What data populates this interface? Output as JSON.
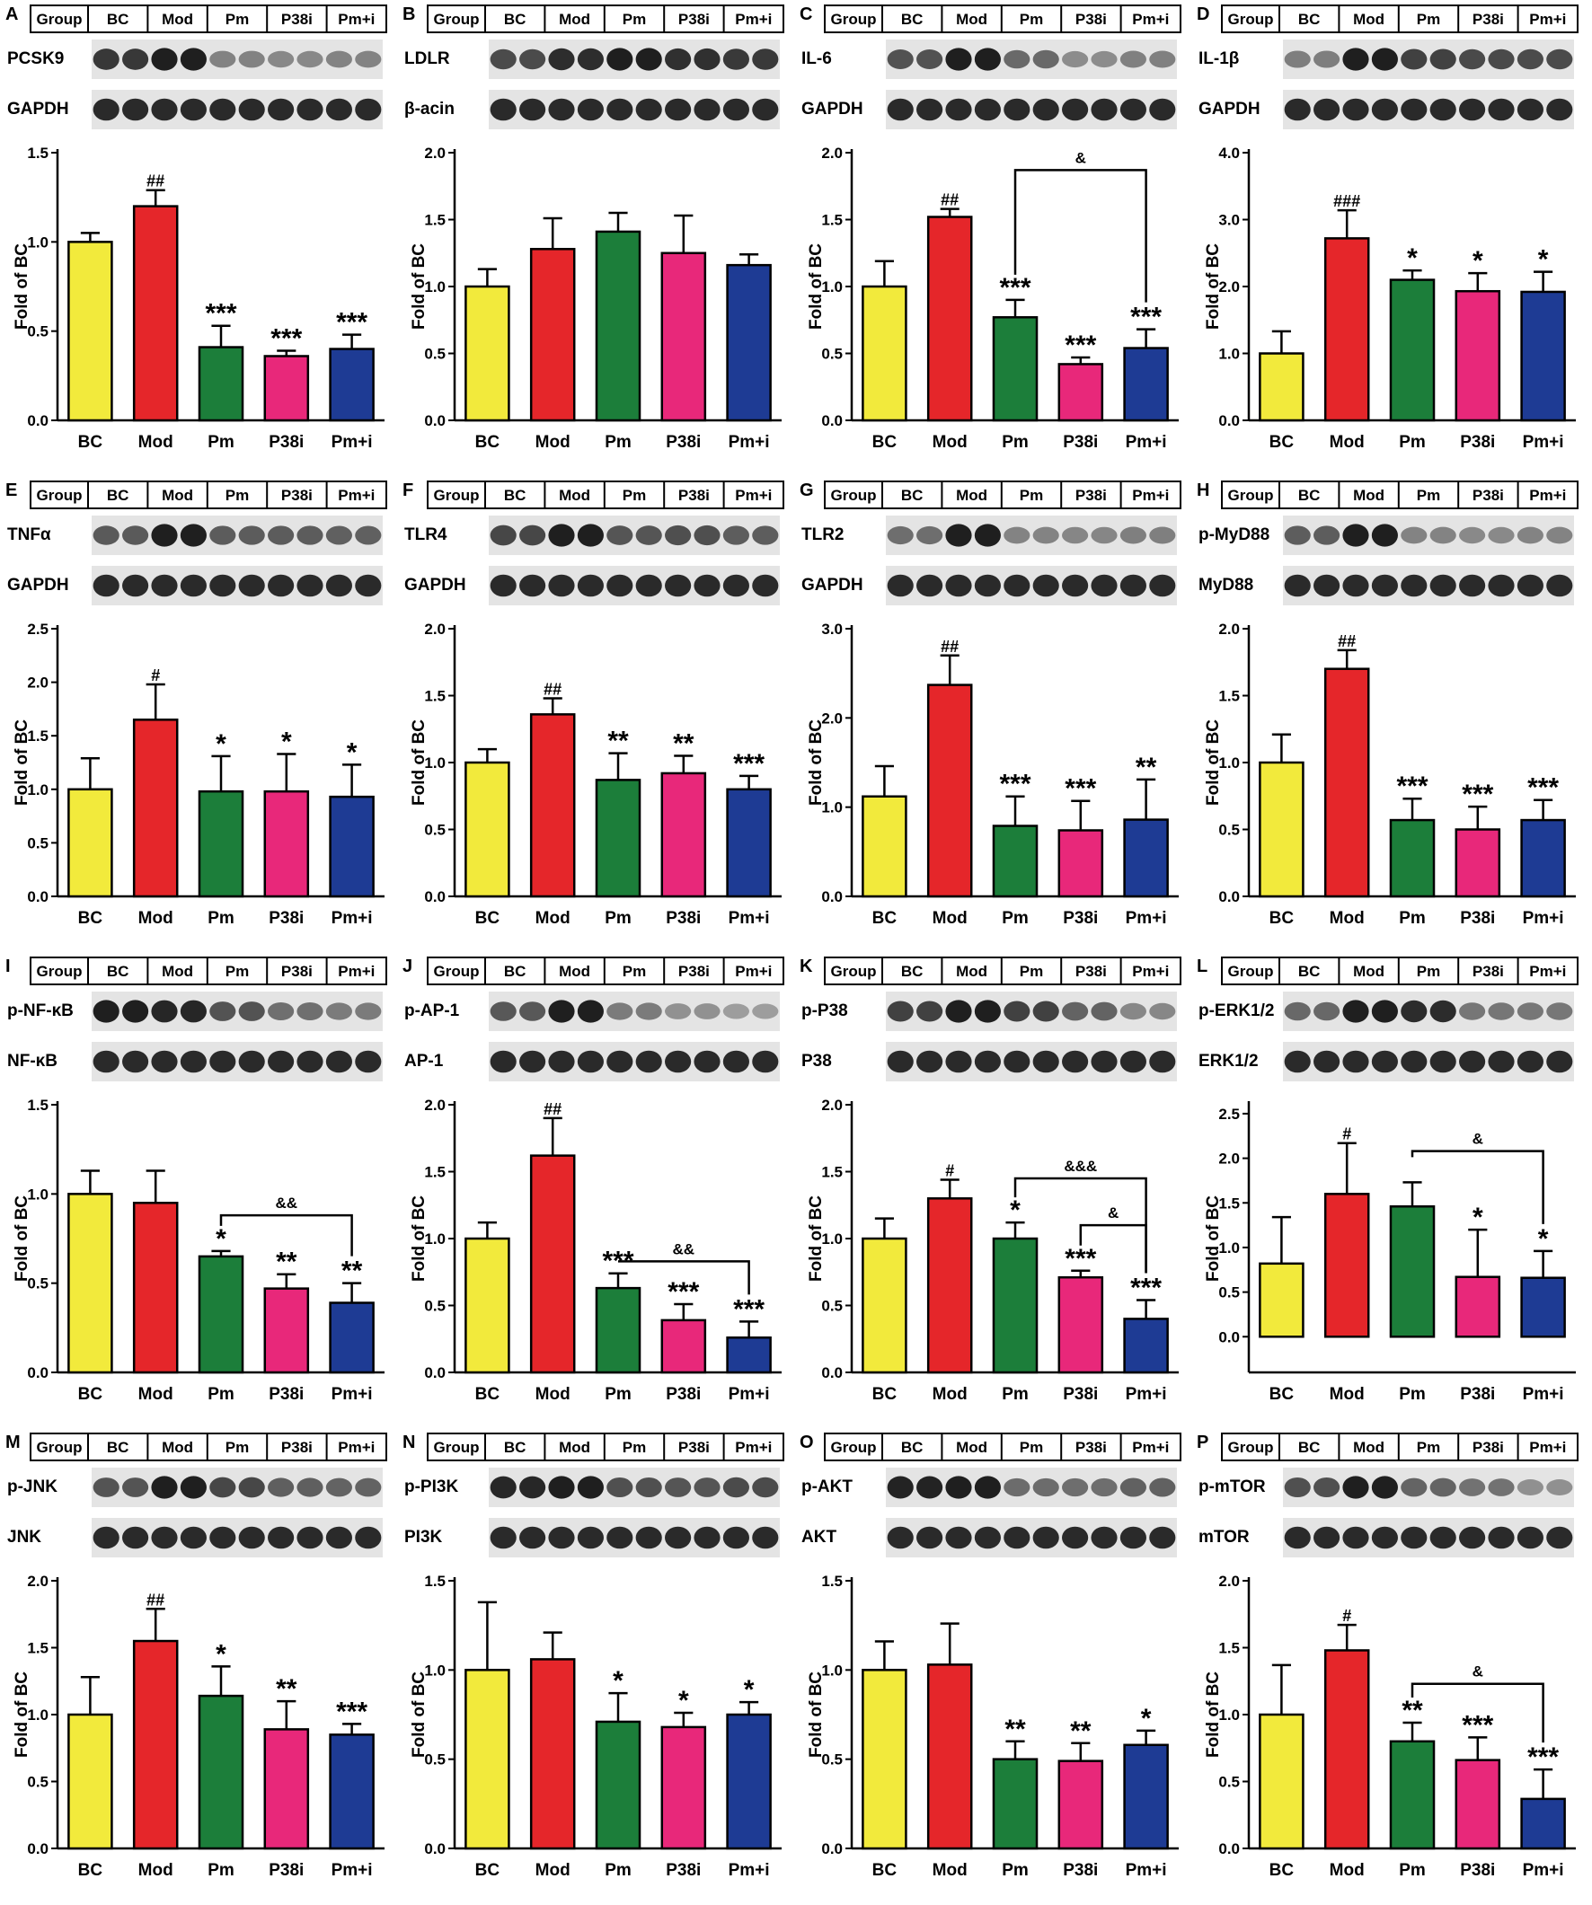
{
  "group_header": "Group",
  "ylabel": "Fold of BC",
  "categories": [
    "BC",
    "Mod",
    "Pm",
    "P38i",
    "Pm+i"
  ],
  "bar_colors": [
    "#f2ea3c",
    "#e5262a",
    "#1c7e3a",
    "#e8287a",
    "#1e3b94"
  ],
  "chart_data": [
    {
      "panel": "A",
      "type": "bar",
      "blots": [
        "PCSK9",
        "GAPDH"
      ],
      "ylim": [
        0,
        1.5
      ],
      "ticks": [
        "0.0",
        "0.5",
        "1.0",
        "1.5"
      ],
      "values": [
        1.0,
        1.2,
        0.41,
        0.36,
        0.4
      ],
      "errors": [
        0.05,
        0.09,
        0.12,
        0.03,
        0.08
      ],
      "sig": [
        "",
        "##",
        "***",
        "***",
        "***"
      ],
      "brackets": []
    },
    {
      "panel": "B",
      "type": "bar",
      "blots": [
        "LDLR",
        "β-acin"
      ],
      "ylim": [
        0,
        2.0
      ],
      "ticks": [
        "0.0",
        "0.5",
        "1.0",
        "1.5",
        "2.0"
      ],
      "values": [
        1.0,
        1.28,
        1.41,
        1.25,
        1.16
      ],
      "errors": [
        0.13,
        0.23,
        0.14,
        0.28,
        0.08
      ],
      "sig": [
        "",
        "",
        "",
        "",
        ""
      ],
      "brackets": []
    },
    {
      "panel": "C",
      "type": "bar",
      "blots": [
        "IL-6",
        "GAPDH"
      ],
      "ylim": [
        0,
        2.0
      ],
      "ticks": [
        "0.0",
        "0.5",
        "1.0",
        "1.5",
        "2.0"
      ],
      "values": [
        1.0,
        1.52,
        0.77,
        0.42,
        0.54
      ],
      "errors": [
        0.19,
        0.06,
        0.13,
        0.05,
        0.14
      ],
      "sig": [
        "",
        "##",
        "***",
        "***",
        "***"
      ],
      "brackets": [
        {
          "from": 2,
          "to": 4,
          "y": 1.87,
          "label": "&"
        }
      ]
    },
    {
      "panel": "D",
      "type": "bar",
      "blots": [
        "IL-1β",
        "GAPDH"
      ],
      "ylim": [
        0,
        4.0
      ],
      "ticks": [
        "0.0",
        "1.0",
        "2.0",
        "3.0",
        "4.0"
      ],
      "values": [
        1.0,
        2.72,
        2.1,
        1.93,
        1.92
      ],
      "errors": [
        0.33,
        0.42,
        0.14,
        0.27,
        0.3
      ],
      "sig": [
        "",
        "###",
        "*",
        "*",
        "*"
      ],
      "brackets": []
    },
    {
      "panel": "E",
      "type": "bar",
      "blots": [
        "TNFα",
        "GAPDH"
      ],
      "ylim": [
        0,
        2.5
      ],
      "ticks": [
        "0.0",
        "0.5",
        "1.0",
        "1.5",
        "2.0",
        "2.5"
      ],
      "values": [
        1.0,
        1.65,
        0.98,
        0.98,
        0.93
      ],
      "errors": [
        0.29,
        0.33,
        0.33,
        0.35,
        0.3
      ],
      "sig": [
        "",
        "#",
        "*",
        "*",
        "*"
      ],
      "brackets": []
    },
    {
      "panel": "F",
      "type": "bar",
      "blots": [
        "TLR4",
        "GAPDH"
      ],
      "ylim": [
        0,
        2.0
      ],
      "ticks": [
        "0.0",
        "0.5",
        "1.0",
        "1.5",
        "2.0"
      ],
      "values": [
        1.0,
        1.36,
        0.87,
        0.92,
        0.8
      ],
      "errors": [
        0.1,
        0.12,
        0.2,
        0.13,
        0.1
      ],
      "sig": [
        "",
        "##",
        "**",
        "**",
        "***"
      ],
      "brackets": []
    },
    {
      "panel": "G",
      "type": "bar",
      "blots": [
        "TLR2",
        "GAPDH"
      ],
      "ylim": [
        0,
        3.0
      ],
      "ticks": [
        "0.0",
        "1.0",
        "2.0",
        "3.0"
      ],
      "values": [
        1.12,
        2.37,
        0.79,
        0.74,
        0.86
      ],
      "errors": [
        0.34,
        0.33,
        0.33,
        0.33,
        0.45
      ],
      "sig": [
        "",
        "##",
        "***",
        "***",
        "**"
      ],
      "brackets": []
    },
    {
      "panel": "H",
      "type": "bar",
      "blots": [
        "p-MyD88",
        "MyD88"
      ],
      "ylim": [
        0,
        2.0
      ],
      "ticks": [
        "0.0",
        "0.5",
        "1.0",
        "1.5",
        "2.0"
      ],
      "values": [
        1.0,
        1.7,
        0.57,
        0.5,
        0.57
      ],
      "errors": [
        0.21,
        0.14,
        0.16,
        0.17,
        0.15
      ],
      "sig": [
        "",
        "##",
        "***",
        "***",
        "***"
      ],
      "brackets": []
    },
    {
      "panel": "I",
      "type": "bar",
      "blots": [
        "p-NF-κB",
        "NF-κB"
      ],
      "ylim": [
        0,
        1.5
      ],
      "ticks": [
        "0.0",
        "0.5",
        "1.0",
        "1.5"
      ],
      "values": [
        1.0,
        0.95,
        0.65,
        0.47,
        0.39
      ],
      "errors": [
        0.13,
        0.18,
        0.03,
        0.08,
        0.11
      ],
      "sig": [
        "",
        "",
        "*",
        "**",
        "**"
      ],
      "brackets": [
        {
          "from": 2,
          "to": 4,
          "y": 0.88,
          "label": "&&"
        }
      ]
    },
    {
      "panel": "J",
      "type": "bar",
      "blots": [
        "p-AP-1",
        "AP-1"
      ],
      "ylim": [
        0,
        2.0
      ],
      "ticks": [
        "0.0",
        "0.5",
        "1.0",
        "1.5",
        "2.0"
      ],
      "values": [
        1.0,
        1.62,
        0.63,
        0.39,
        0.26
      ],
      "errors": [
        0.12,
        0.28,
        0.11,
        0.12,
        0.12
      ],
      "sig": [
        "",
        "##",
        "***",
        "***",
        "***"
      ],
      "brackets": [
        {
          "from": 2,
          "to": 4,
          "y": 0.83,
          "label": "&&"
        }
      ]
    },
    {
      "panel": "K",
      "type": "bar",
      "blots": [
        "p-P38",
        "P38"
      ],
      "ylim": [
        0,
        2.0
      ],
      "ticks": [
        "0.0",
        "0.5",
        "1.0",
        "1.5",
        "2.0"
      ],
      "values": [
        1.0,
        1.3,
        1.0,
        0.71,
        0.4
      ],
      "errors": [
        0.15,
        0.14,
        0.12,
        0.05,
        0.14
      ],
      "sig": [
        "",
        "#",
        "*",
        "***",
        "***"
      ],
      "brackets": [
        {
          "from": 2,
          "to": 4,
          "y": 1.45,
          "label": "&&&"
        },
        {
          "from": 3,
          "to": 4,
          "y": 1.1,
          "label": "&"
        }
      ]
    },
    {
      "panel": "L",
      "type": "bar",
      "blots": [
        "p-ERK1/2",
        "ERK1/2"
      ],
      "ylim": [
        -0.4,
        2.6
      ],
      "ticks": [
        "0.0",
        "0.5",
        "1.0",
        "1.5",
        "2.0",
        "2.5"
      ],
      "values": [
        0.82,
        1.6,
        1.46,
        0.67,
        0.66
      ],
      "errors": [
        0.52,
        0.57,
        0.27,
        0.53,
        0.3
      ],
      "sig": [
        "",
        "#",
        "",
        "*",
        "*"
      ],
      "brackets": [
        {
          "from": 2,
          "to": 4,
          "y": 2.08,
          "label": "&"
        }
      ]
    },
    {
      "panel": "M",
      "type": "bar",
      "blots": [
        "p-JNK",
        "JNK"
      ],
      "ylim": [
        0,
        2.0
      ],
      "ticks": [
        "0.0",
        "0.5",
        "1.0",
        "1.5",
        "2.0"
      ],
      "values": [
        1.0,
        1.55,
        1.14,
        0.89,
        0.85
      ],
      "errors": [
        0.28,
        0.24,
        0.22,
        0.21,
        0.08
      ],
      "sig": [
        "",
        "##",
        "*",
        "**",
        "***"
      ],
      "brackets": []
    },
    {
      "panel": "N",
      "type": "bar",
      "blots": [
        "p-PI3K",
        "PI3K"
      ],
      "ylim": [
        0,
        1.5
      ],
      "ticks": [
        "0.0",
        "0.5",
        "1.0",
        "1.5"
      ],
      "values": [
        1.0,
        1.06,
        0.71,
        0.68,
        0.75
      ],
      "errors": [
        0.38,
        0.15,
        0.16,
        0.08,
        0.07
      ],
      "sig": [
        "",
        "",
        "*",
        "*",
        "*"
      ],
      "brackets": []
    },
    {
      "panel": "O",
      "type": "bar",
      "blots": [
        "p-AKT",
        "AKT"
      ],
      "ylim": [
        0,
        1.5
      ],
      "ticks": [
        "0.0",
        "0.5",
        "1.0",
        "1.5"
      ],
      "values": [
        1.0,
        1.03,
        0.5,
        0.49,
        0.58
      ],
      "errors": [
        0.16,
        0.23,
        0.1,
        0.1,
        0.08
      ],
      "sig": [
        "",
        "",
        "**",
        "**",
        "*"
      ],
      "brackets": []
    },
    {
      "panel": "P",
      "type": "bar",
      "blots": [
        "p-mTOR",
        "mTOR"
      ],
      "ylim": [
        0,
        2.0
      ],
      "ticks": [
        "0.0",
        "0.5",
        "1.0",
        "1.5",
        "2.0"
      ],
      "values": [
        1.0,
        1.48,
        0.8,
        0.66,
        0.37
      ],
      "errors": [
        0.37,
        0.19,
        0.14,
        0.17,
        0.22
      ],
      "sig": [
        "",
        "#",
        "**",
        "***",
        "***"
      ],
      "brackets": [
        {
          "from": 2,
          "to": 4,
          "y": 1.23,
          "label": "&"
        }
      ]
    }
  ]
}
